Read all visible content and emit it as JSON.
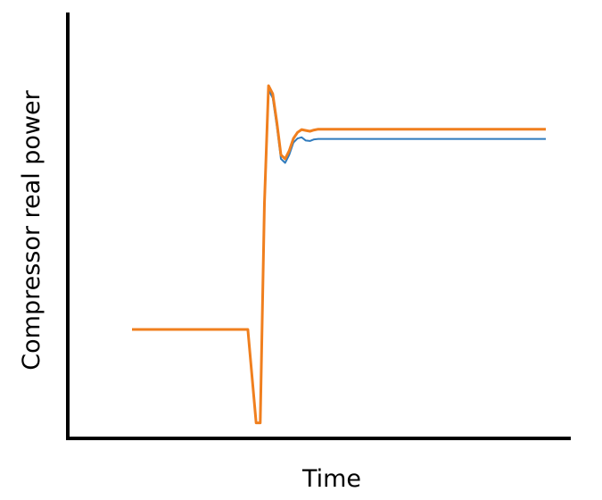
{
  "chart_data": {
    "type": "line",
    "xlabel": "Time",
    "ylabel": "Compressor real power",
    "xlim": [
      0,
      100
    ],
    "ylim": [
      0,
      100
    ],
    "grid": false,
    "legend": "none",
    "ticks": "none",
    "series": [
      {
        "color": "#2f7bbd",
        "x": [
          0,
          28,
          30,
          31,
          32,
          33,
          34,
          35,
          36,
          37,
          38,
          39,
          40,
          41,
          42,
          43,
          44,
          45,
          46,
          48,
          50,
          55,
          60,
          70,
          80,
          90,
          100
        ],
        "y": [
          30,
          30,
          7,
          7,
          60,
          89,
          87,
          80,
          72,
          71,
          73,
          76,
          77,
          77.3,
          76.5,
          76.4,
          76.8,
          76.9,
          76.9,
          76.9,
          76.9,
          76.9,
          76.9,
          76.9,
          76.9,
          76.9,
          76.9
        ]
      },
      {
        "color": "#f07f1e",
        "x": [
          0,
          28,
          30,
          31,
          32,
          33,
          34,
          35,
          36,
          37,
          38,
          39,
          40,
          41,
          42,
          43,
          44,
          45,
          46,
          48,
          50,
          55,
          60,
          70,
          80,
          90,
          100
        ],
        "y": [
          30,
          30,
          7,
          7,
          61,
          90,
          88,
          81,
          73,
          72,
          74,
          77,
          78.5,
          79.2,
          79,
          78.8,
          79.1,
          79.3,
          79.3,
          79.3,
          79.3,
          79.3,
          79.3,
          79.3,
          79.3,
          79.3,
          79.3
        ]
      }
    ]
  }
}
